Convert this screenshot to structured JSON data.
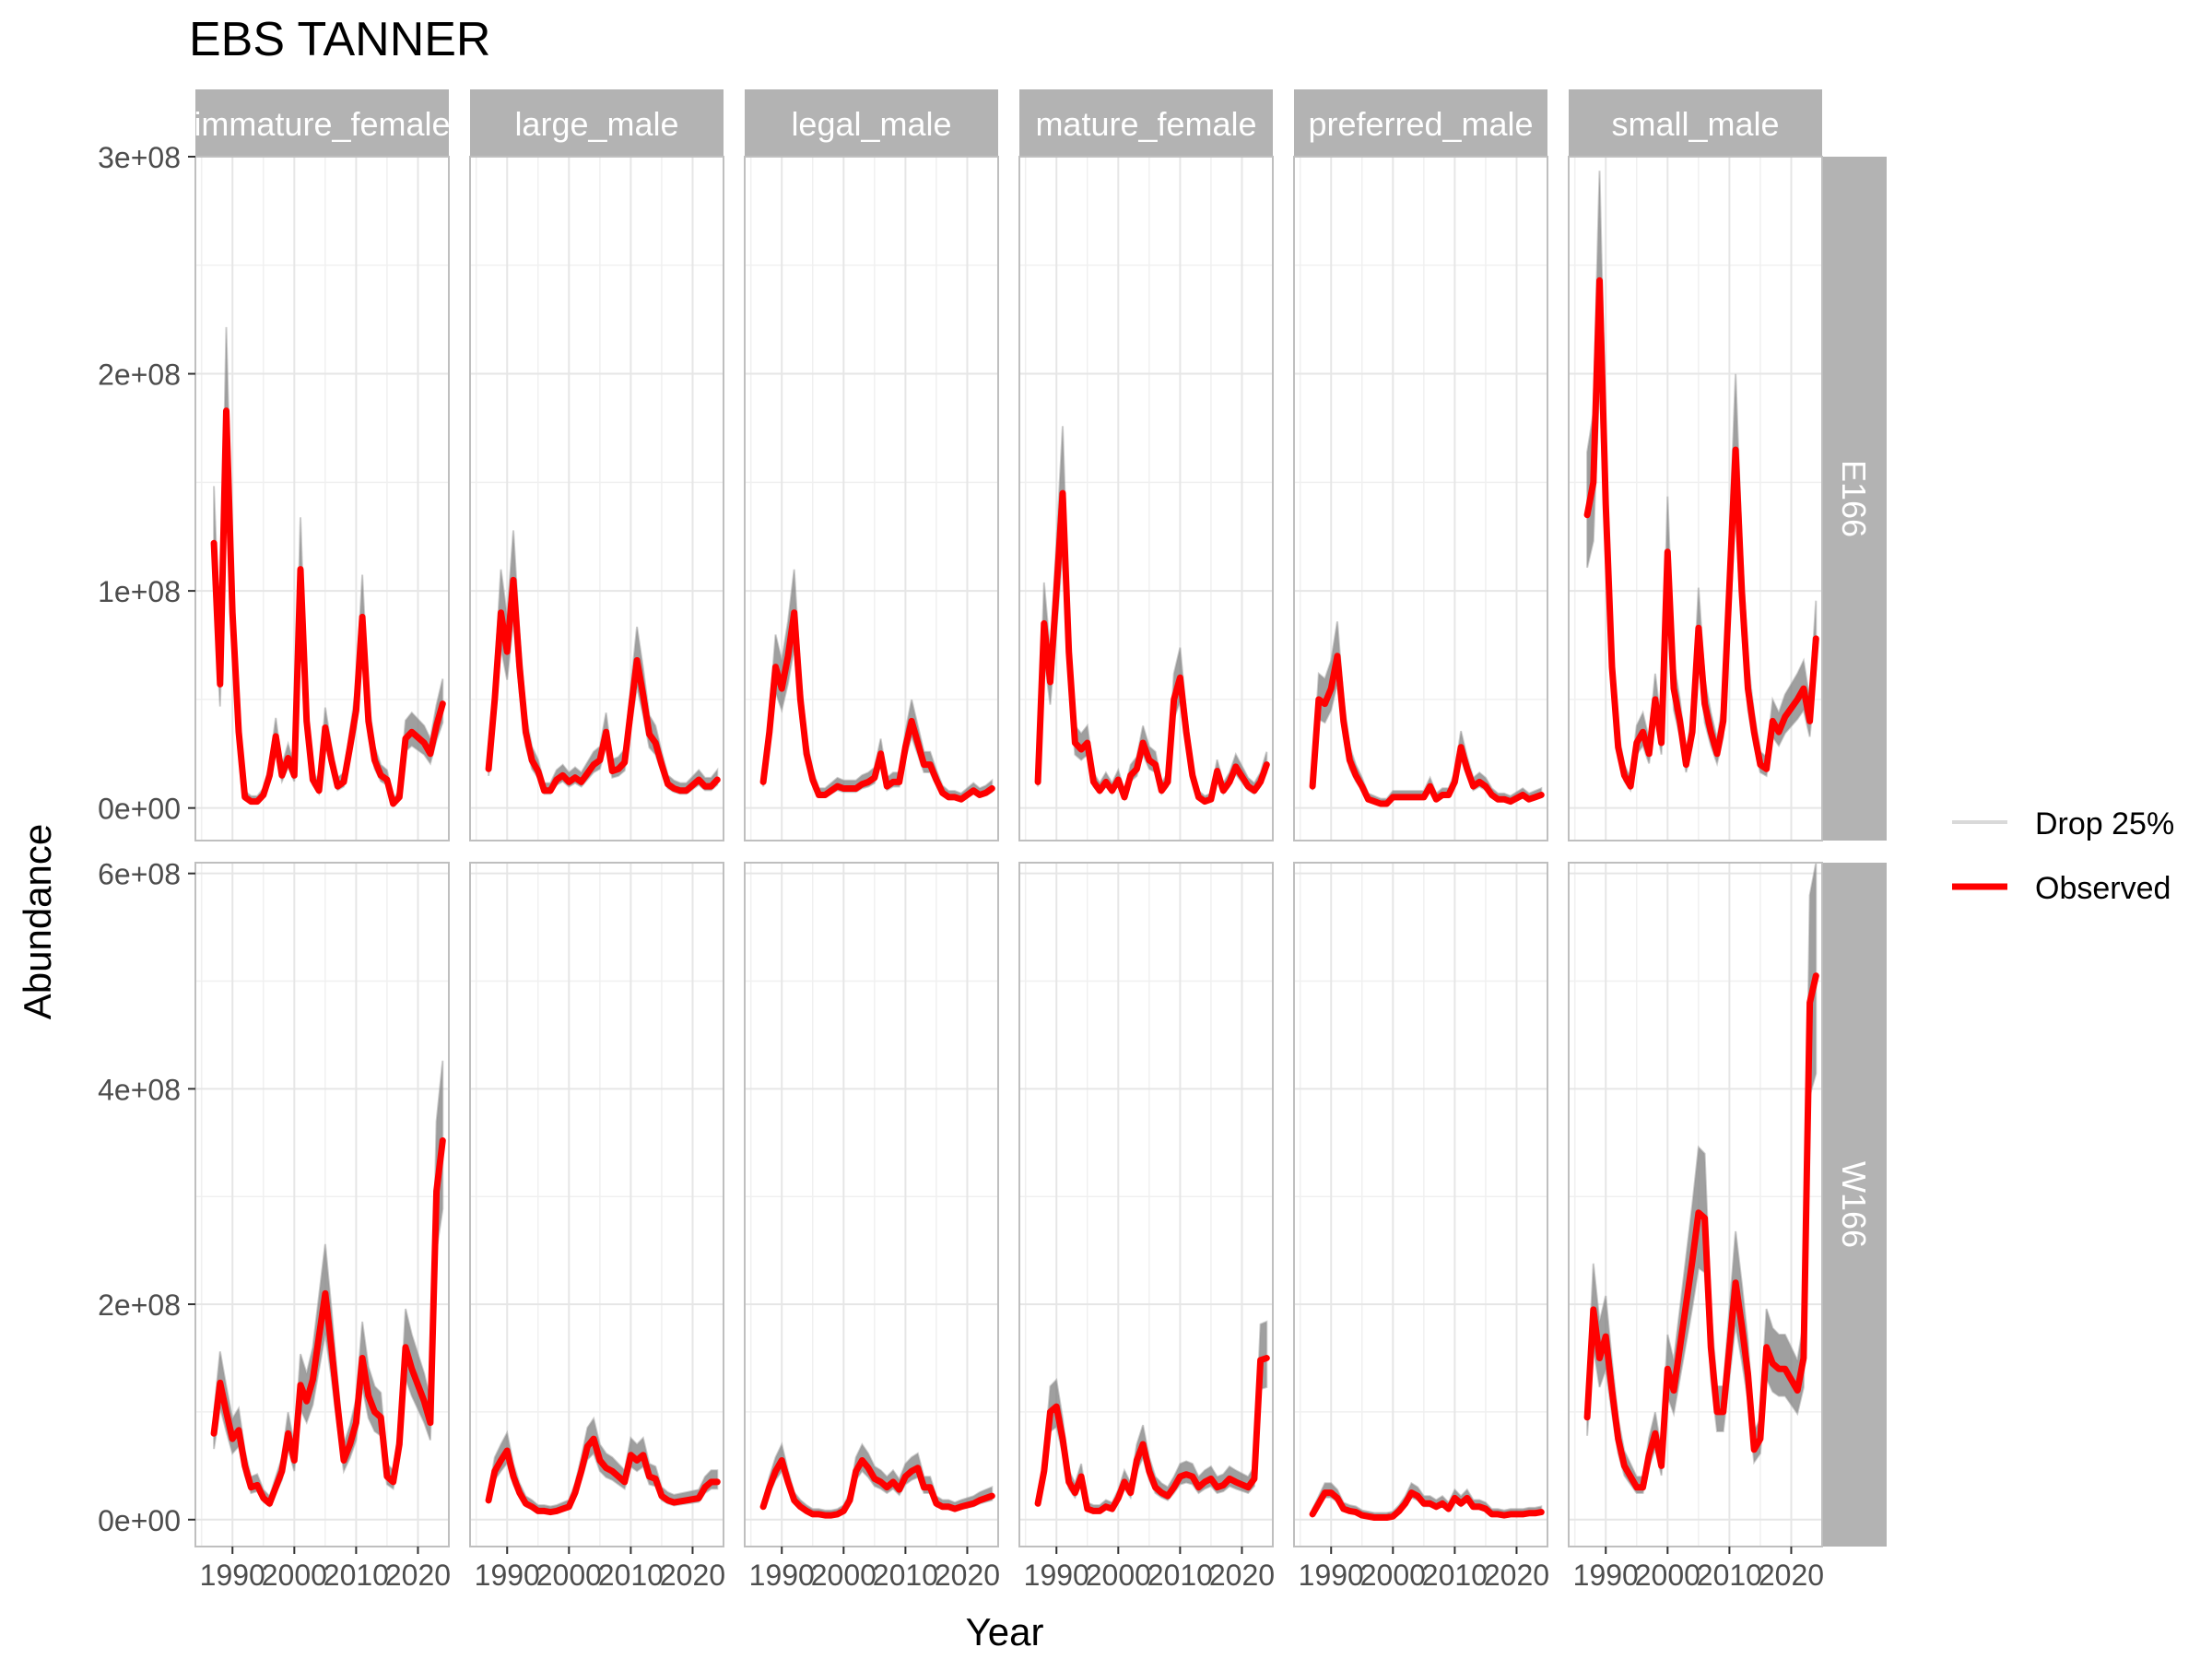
{
  "chart_data": {
    "type": "line",
    "title": "EBS TANNER",
    "xlabel": "Year",
    "ylabel": "Abundance",
    "xlim": [
      1984,
      2025
    ],
    "x_ticks": [
      1990,
      2000,
      2010,
      2020
    ],
    "x_tick_labels": [
      "1990",
      "2000",
      "2010",
      "2020"
    ],
    "column_facets": [
      "immature_female",
      "large_male",
      "legal_male",
      "mature_female",
      "preferred_male",
      "small_male"
    ],
    "row_facets": [
      {
        "label": "E166",
        "ylim": [
          -15000000,
          300000000
        ],
        "y_ticks": [
          0,
          100000000,
          200000000,
          300000000
        ],
        "y_tick_labels": [
          "0e+00",
          "1e+08",
          "2e+08",
          "3e+08"
        ]
      },
      {
        "label": "W166",
        "ylim": [
          -25000000,
          610000000
        ],
        "y_ticks": [
          0,
          200000000,
          400000000,
          600000000
        ],
        "y_tick_labels": [
          "0e+00",
          "2e+08",
          "4e+08",
          "6e+08"
        ]
      }
    ],
    "legend": {
      "placement": "right",
      "entries": [
        {
          "name": "Drop 25%",
          "color": "#d9d9d9"
        },
        {
          "name": "Observed",
          "color": "#ff0000"
        }
      ]
    },
    "grid": true,
    "colors": {
      "observed": "#ff0000",
      "drop_band": "#7f7f7f",
      "strip": "#b3b3b3",
      "grid": "#e6e6e6",
      "panel_border": "#bfbfbf"
    },
    "years": [
      1987,
      1988,
      1989,
      1990,
      1991,
      1992,
      1993,
      1994,
      1995,
      1996,
      1997,
      1998,
      1999,
      2000,
      2001,
      2002,
      2003,
      2004,
      2005,
      2006,
      2007,
      2008,
      2009,
      2010,
      2011,
      2012,
      2013,
      2014,
      2015,
      2016,
      2017,
      2018,
      2019,
      2021,
      2022,
      2023,
      2024
    ],
    "series": [
      {
        "row": "E166",
        "column": "immature_female",
        "name": "Observed",
        "values": [
          122,
          57,
          183,
          90,
          35,
          5,
          3,
          3,
          6,
          15,
          33,
          15,
          23,
          15,
          110,
          40,
          13,
          8,
          37,
          22,
          10,
          12,
          28,
          45,
          88,
          40,
          22,
          15,
          13,
          2,
          5,
          32,
          35,
          30,
          25,
          38,
          48
        ]
      },
      {
        "row": "E166",
        "column": "large_male",
        "name": "Observed",
        "values": [
          18,
          50,
          90,
          72,
          105,
          65,
          35,
          22,
          17,
          8,
          8,
          13,
          15,
          12,
          14,
          12,
          16,
          20,
          22,
          35,
          17,
          18,
          21,
          45,
          68,
          52,
          34,
          30,
          20,
          11,
          9,
          8,
          8,
          13,
          10,
          10,
          13
        ]
      },
      {
        "row": "E166",
        "column": "legal_male",
        "name": "Observed",
        "values": [
          12,
          35,
          65,
          55,
          70,
          90,
          50,
          25,
          13,
          6,
          6,
          8,
          10,
          9,
          9,
          9,
          11,
          12,
          14,
          25,
          10,
          12,
          12,
          28,
          40,
          30,
          20,
          20,
          13,
          7,
          5,
          5,
          4,
          8,
          6,
          7,
          9
        ]
      },
      {
        "row": "E166",
        "column": "mature_female",
        "name": "Observed",
        "values": [
          12,
          85,
          58,
          100,
          145,
          72,
          30,
          27,
          30,
          12,
          8,
          12,
          8,
          13,
          5,
          15,
          18,
          30,
          22,
          20,
          8,
          12,
          50,
          60,
          35,
          15,
          5,
          3,
          4,
          17,
          8,
          12,
          19,
          10,
          8,
          12,
          20
        ]
      },
      {
        "row": "E166",
        "column": "preferred_male",
        "name": "Observed",
        "values": [
          10,
          50,
          48,
          55,
          70,
          40,
          22,
          15,
          10,
          4,
          3,
          2,
          2,
          5,
          5,
          5,
          5,
          5,
          5,
          10,
          4,
          6,
          6,
          12,
          28,
          18,
          10,
          12,
          10,
          6,
          4,
          4,
          3,
          6,
          4,
          5,
          6
        ]
      },
      {
        "row": "E166",
        "column": "small_male",
        "name": "Observed",
        "values": [
          135,
          150,
          243,
          140,
          65,
          28,
          15,
          10,
          30,
          35,
          25,
          50,
          30,
          118,
          55,
          40,
          20,
          35,
          83,
          48,
          35,
          25,
          40,
          102,
          165,
          100,
          55,
          35,
          20,
          18,
          40,
          35,
          42,
          50,
          55,
          40,
          78
        ]
      },
      {
        "row": "W166",
        "column": "immature_female",
        "name": "Observed",
        "values": [
          80,
          127,
          100,
          75,
          83,
          50,
          30,
          32,
          20,
          15,
          30,
          45,
          80,
          55,
          125,
          110,
          130,
          170,
          210,
          160,
          105,
          55,
          70,
          90,
          150,
          115,
          100,
          95,
          40,
          35,
          70,
          160,
          140,
          110,
          90,
          305,
          352
        ]
      },
      {
        "row": "W166",
        "column": "large_male",
        "name": "Observed",
        "values": [
          18,
          45,
          55,
          64,
          40,
          25,
          15,
          12,
          8,
          8,
          7,
          8,
          10,
          12,
          25,
          45,
          68,
          75,
          55,
          48,
          45,
          40,
          35,
          60,
          55,
          60,
          40,
          38,
          22,
          18,
          16,
          17,
          18,
          20,
          30,
          35,
          35
        ]
      },
      {
        "row": "W166",
        "column": "legal_male",
        "name": "Observed",
        "values": [
          12,
          30,
          45,
          55,
          35,
          18,
          12,
          8,
          5,
          5,
          4,
          4,
          5,
          8,
          18,
          45,
          55,
          48,
          38,
          35,
          30,
          35,
          28,
          40,
          45,
          48,
          30,
          30,
          15,
          12,
          12,
          10,
          12,
          15,
          18,
          20,
          22
        ]
      },
      {
        "row": "W166",
        "column": "mature_female",
        "name": "Observed",
        "values": [
          15,
          45,
          100,
          105,
          75,
          35,
          25,
          40,
          10,
          8,
          8,
          12,
          10,
          20,
          35,
          25,
          55,
          70,
          45,
          30,
          25,
          22,
          30,
          40,
          42,
          40,
          30,
          35,
          38,
          30,
          32,
          38,
          35,
          30,
          38,
          148,
          150
        ]
      },
      {
        "row": "W166",
        "column": "preferred_male",
        "name": "Observed",
        "values": [
          5,
          15,
          25,
          25,
          20,
          10,
          8,
          7,
          4,
          3,
          2,
          2,
          2,
          3,
          8,
          15,
          25,
          22,
          15,
          15,
          12,
          15,
          10,
          20,
          15,
          20,
          12,
          12,
          10,
          5,
          5,
          4,
          5,
          5,
          6,
          6,
          7
        ]
      },
      {
        "row": "W166",
        "column": "small_male",
        "name": "Observed",
        "values": [
          95,
          195,
          150,
          170,
          120,
          75,
          50,
          40,
          30,
          30,
          60,
          80,
          50,
          140,
          120,
          160,
          200,
          240,
          285,
          280,
          160,
          100,
          100,
          160,
          220,
          180,
          135,
          65,
          75,
          160,
          145,
          140,
          140,
          120,
          150,
          480,
          505
        ]
      }
    ]
  }
}
